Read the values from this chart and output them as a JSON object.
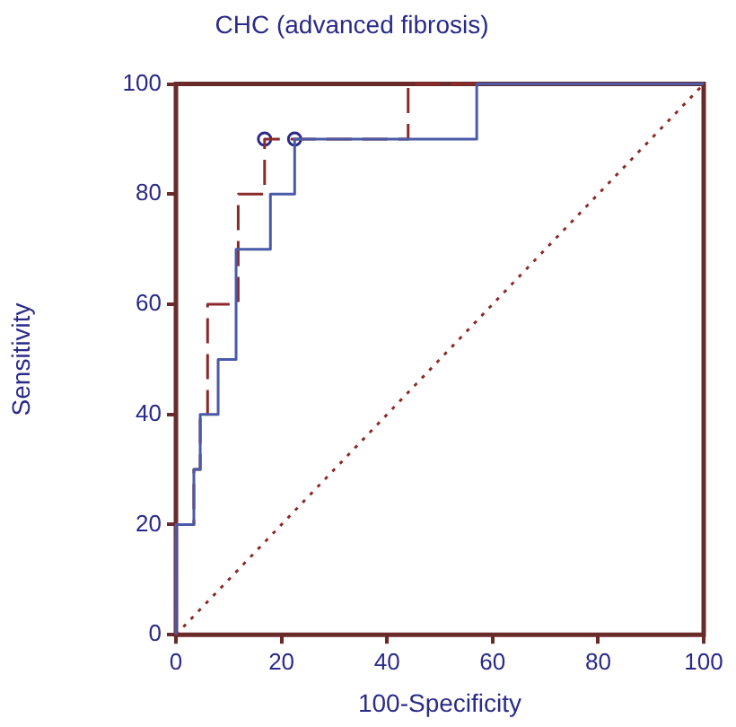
{
  "chart_data": {
    "type": "line",
    "title": "CHC (advanced fibrosis)",
    "xlabel": "100-Specificity",
    "ylabel": "Sensitivity",
    "xlim": [
      0,
      100
    ],
    "ylim": [
      0,
      100
    ],
    "xticks": [
      0,
      20,
      40,
      60,
      80,
      100
    ],
    "yticks": [
      0,
      20,
      40,
      60,
      80,
      100
    ],
    "grid": false,
    "legend": false,
    "series": [
      {
        "type": "step",
        "color": "#4a5aa8",
        "line_style": "solid",
        "marker": "none",
        "x": [
          0,
          0,
          3.4,
          4.6,
          8,
          11.4,
          17.9,
          22.5,
          57,
          100
        ],
        "values": [
          0,
          20,
          30,
          40,
          50,
          70,
          80,
          90,
          100,
          100
        ]
      },
      {
        "type": "step",
        "color": "#8b2a2a",
        "line_style": "dashed",
        "marker": "none",
        "x": [
          0,
          0,
          3.4,
          4.6,
          6,
          11.8,
          16.8,
          44,
          100
        ],
        "values": [
          0,
          20,
          30,
          40,
          60,
          80,
          90,
          100,
          100
        ]
      },
      {
        "color": "#8b2a2a",
        "line_style": "dotted",
        "marker": "none",
        "x": [
          0,
          100
        ],
        "values": [
          0,
          100
        ]
      },
      {
        "type": "scatter",
        "color": "#2a2a8a",
        "marker": "circle",
        "x": [
          16.8,
          22.5
        ],
        "values": [
          90,
          90
        ]
      }
    ]
  }
}
